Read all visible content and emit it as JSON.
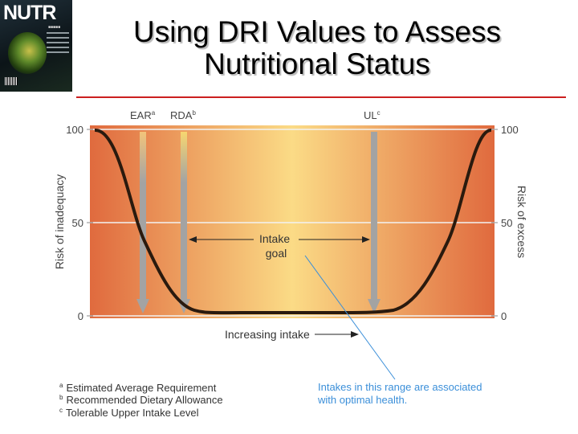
{
  "slide": {
    "title": "Using DRI Values to Assess Nutritional Status"
  },
  "cover": {
    "brand": "NUTR",
    "colors": {
      "background": "#0c1418",
      "art": "#c8c04a"
    }
  },
  "diagram": {
    "markers": {
      "ear": {
        "label": "EAR",
        "sup": "a"
      },
      "rda": {
        "label": "RDA",
        "sup": "b"
      },
      "ul": {
        "label": "UL",
        "sup": "c"
      }
    },
    "left_axis": {
      "label": "Risk of inadequacy",
      "ticks": [
        "100",
        "50",
        "0"
      ]
    },
    "right_axis": {
      "label": "Risk of excess",
      "ticks": [
        "100",
        "50",
        "0"
      ]
    },
    "intake_goal": "Intake goal",
    "increasing_intake": "Increasing intake",
    "callout": "Intakes in this range are associated with optimal health.",
    "footnotes": [
      {
        "sup": "a",
        "text": "Estimated Average Requirement"
      },
      {
        "sup": "b",
        "text": "Recommended Dietary Allowance"
      },
      {
        "sup": "c",
        "text": "Tolerable Upper Intake Level"
      }
    ],
    "colors": {
      "edge": "#e06a3e",
      "center": "#fbdb86",
      "curve": "#2a1a0e",
      "arrow": "#a3a3a3",
      "ear_arrow_start": "#f3c47a",
      "rda_arrow_start": "#f7d670",
      "callout": "#3b8fd9",
      "title_rule": "#cc1f1f"
    }
  }
}
